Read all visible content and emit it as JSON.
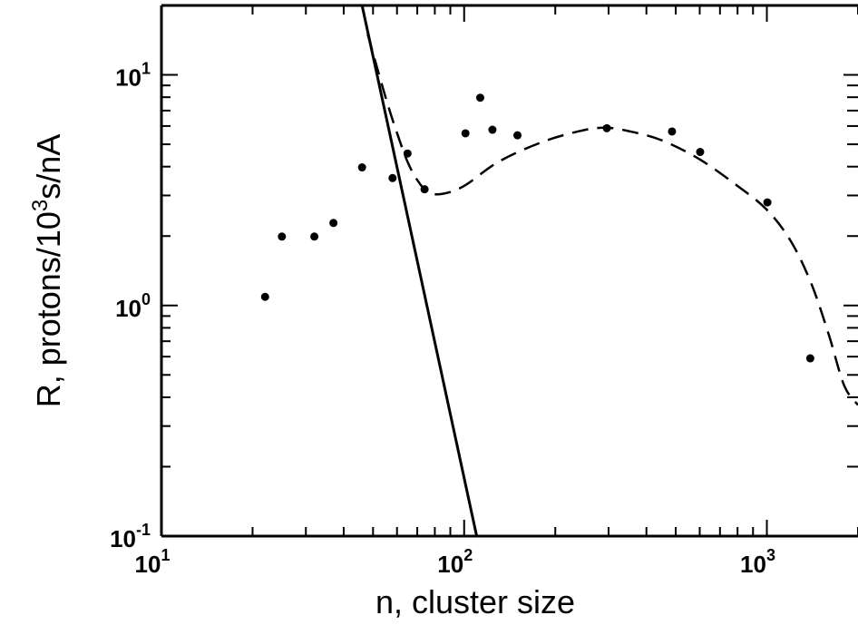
{
  "chart_data": {
    "type": "scatter",
    "xlabel": "n, cluster size",
    "ylabel": "R, protons/10³s/nA",
    "xscale": "log",
    "yscale": "log",
    "xlim": [
      10,
      2000
    ],
    "ylim": [
      0.1,
      20
    ],
    "grid": false,
    "legend": "none",
    "x_tick_labels": [
      {
        "value": 10,
        "base": "10",
        "exp": "1"
      },
      {
        "value": 100,
        "base": "10",
        "exp": "2"
      },
      {
        "value": 1000,
        "base": "10",
        "exp": "3"
      }
    ],
    "y_tick_labels": [
      {
        "value": 0.1,
        "base": "10",
        "exp": "-1"
      },
      {
        "value": 1,
        "base": "10",
        "exp": "0"
      },
      {
        "value": 10,
        "base": "10",
        "exp": "1"
      }
    ],
    "series": [
      {
        "style": "points",
        "x": [
          22,
          25,
          32,
          37,
          46,
          58,
          65,
          74,
          101,
          113,
          124,
          150,
          296,
          486,
          602,
          1004,
          1391
        ],
        "y": [
          1.09,
          1.99,
          1.99,
          2.28,
          3.97,
          3.57,
          4.56,
          3.19,
          5.58,
          7.96,
          5.78,
          5.47,
          5.87,
          5.68,
          4.63,
          2.8,
          0.59
        ]
      },
      {
        "style": "solid-line",
        "x": [
          46,
          110
        ],
        "y": [
          20,
          0.1
        ]
      },
      {
        "style": "dashed-line",
        "x": [
          48,
          55,
          60,
          65,
          70,
          76,
          85,
          100,
          130,
          180,
          240,
          290,
          350,
          450,
          600,
          800,
          1000,
          1200,
          1400,
          1600,
          1800,
          2000
        ],
        "y": [
          15,
          8,
          5.6,
          4.2,
          3.5,
          3.1,
          3.05,
          3.3,
          4.2,
          5.1,
          5.7,
          5.9,
          5.7,
          5.2,
          4.3,
          3.3,
          2.6,
          1.9,
          1.25,
          0.75,
          0.45,
          0.37
        ]
      }
    ]
  }
}
